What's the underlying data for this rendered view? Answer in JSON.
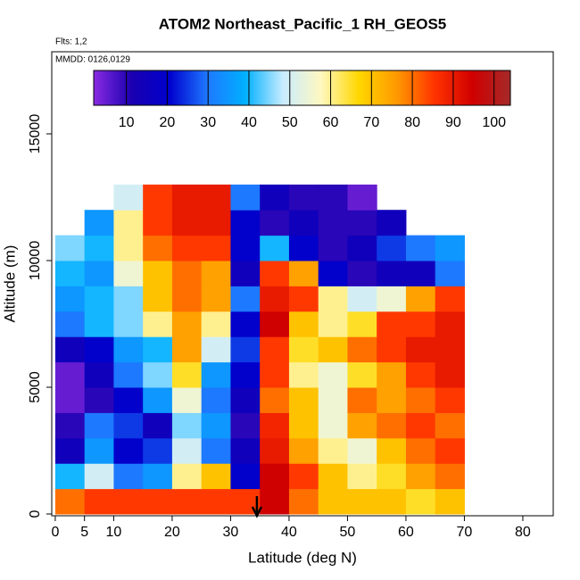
{
  "chart_data": {
    "type": "heatmap",
    "title": "ATOM2 Northeast_Pacific_1 RH_GEOS5",
    "annotations": [
      "Flts: 1,2",
      "MMDD: 0126,0129"
    ],
    "x_label": "Latitude (deg N)",
    "y_label": "Altitude (m)",
    "xlim": [
      -0.6,
      85.2
    ],
    "xticks": [
      0,
      5,
      10,
      20,
      30,
      40,
      50,
      60,
      70,
      80
    ],
    "ylim": [
      -70,
      18240
    ],
    "yticks": [
      0,
      5000,
      10000,
      15000
    ],
    "x_edges": [
      0,
      5,
      10,
      15,
      20,
      25,
      30,
      35,
      40,
      45,
      50,
      55,
      60,
      65,
      70
    ],
    "y_edges": [
      0,
      1000,
      2000,
      3000,
      4000,
      5000,
      6000,
      7000,
      8000,
      9000,
      10000,
      11000,
      12000,
      13000
    ],
    "z": [
      [
        80,
        85,
        85,
        85,
        85,
        85,
        85,
        95,
        80,
        70,
        70,
        70,
        65,
        70
      ],
      [
        40,
        50,
        30,
        35,
        60,
        70,
        20,
        95,
        85,
        70,
        60,
        65,
        75,
        80
      ],
      [
        15,
        35,
        20,
        25,
        50,
        30,
        15,
        90,
        75,
        60,
        55,
        70,
        80,
        85
      ],
      [
        10,
        30,
        25,
        15,
        45,
        35,
        10,
        88,
        70,
        55,
        75,
        80,
        85,
        80
      ],
      [
        5,
        10,
        20,
        35,
        55,
        30,
        15,
        80,
        70,
        55,
        80,
        75,
        80,
        85
      ],
      [
        5,
        15,
        30,
        45,
        65,
        35,
        20,
        85,
        60,
        55,
        65,
        75,
        85,
        90
      ],
      [
        15,
        20,
        35,
        40,
        75,
        50,
        25,
        85,
        65,
        70,
        80,
        85,
        90,
        90
      ],
      [
        30,
        40,
        45,
        60,
        75,
        60,
        20,
        95,
        70,
        60,
        65,
        85,
        85,
        90
      ],
      [
        35,
        40,
        45,
        70,
        80,
        75,
        30,
        90,
        85,
        60,
        50,
        55,
        75,
        85
      ],
      [
        40,
        35,
        55,
        70,
        80,
        75,
        15,
        85,
        75,
        20,
        10,
        15,
        15,
        30
      ],
      [
        45,
        40,
        60,
        80,
        85,
        85,
        20,
        40,
        20,
        10,
        15,
        25,
        30,
        35
      ],
      [
        null,
        35,
        60,
        85,
        90,
        90,
        20,
        10,
        15,
        10,
        10,
        15,
        null,
        null
      ],
      [
        null,
        null,
        50,
        85,
        90,
        90,
        30,
        15,
        10,
        10,
        5,
        null,
        null,
        null
      ]
    ],
    "colorbar": {
      "lim": [
        2,
        104
      ],
      "ticks": [
        10,
        20,
        30,
        40,
        50,
        60,
        70,
        80,
        90,
        100
      ],
      "colors": [
        "#8a2be2",
        "#1a00b0",
        "#0000cd",
        "#1e78ff",
        "#00b0ff",
        "#c8ecff",
        "#fff8c0",
        "#ffd700",
        "#ff9900",
        "#ff3300",
        "#d00000",
        "#a52a2a"
      ]
    }
  }
}
